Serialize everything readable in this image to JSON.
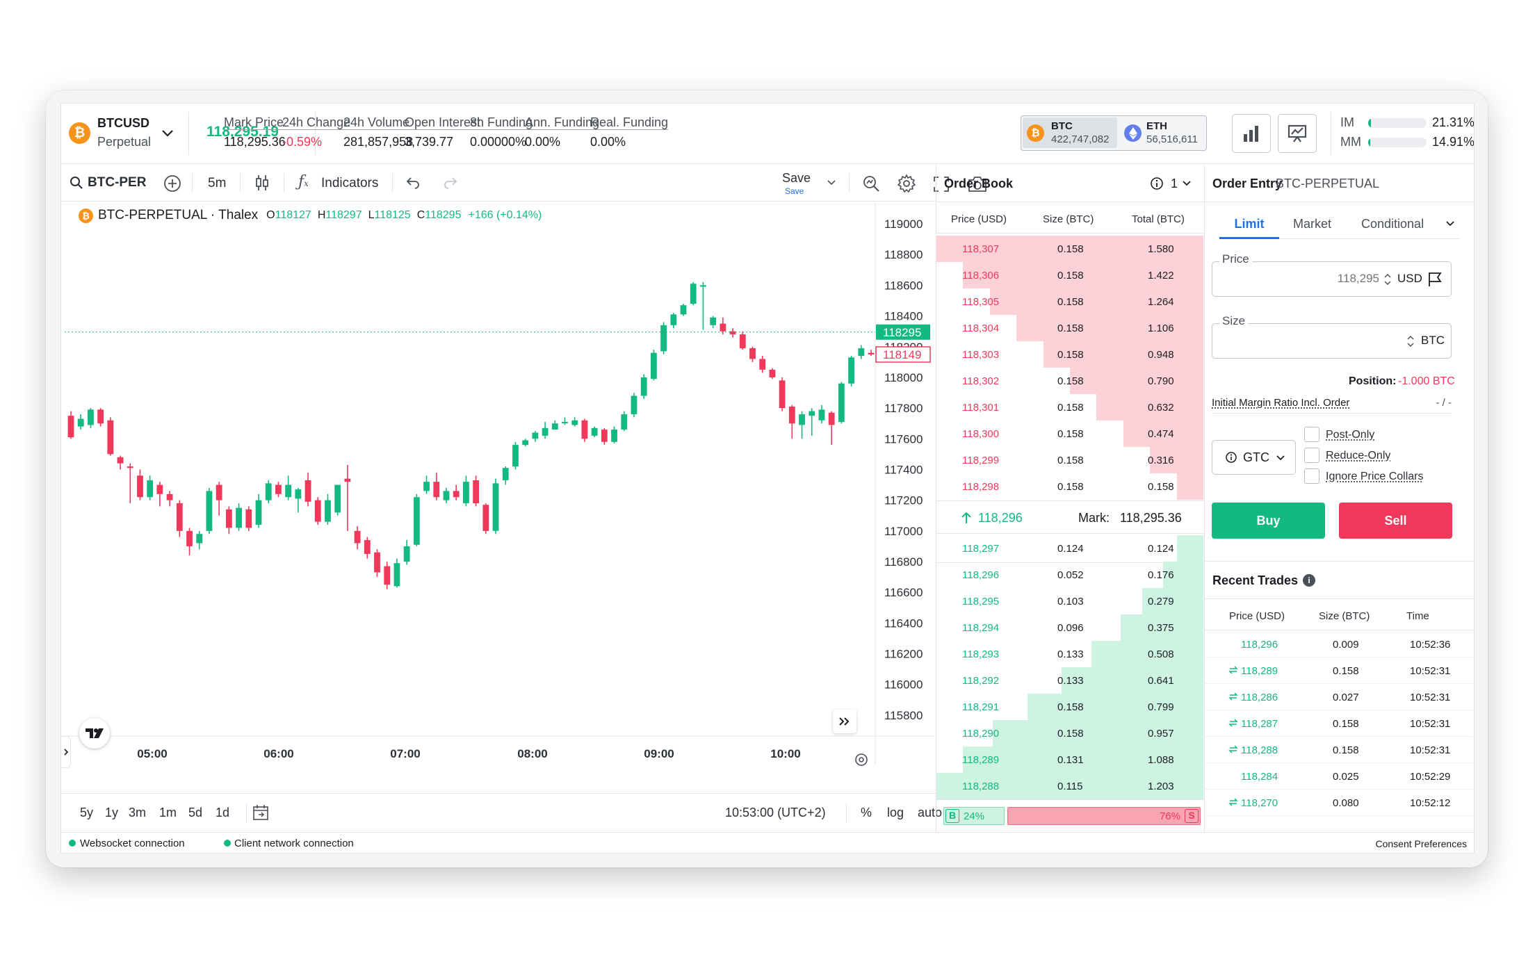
{
  "instrument": {
    "symbol": "BTCUSD",
    "type": "Perpetual",
    "price": "118,295.19"
  },
  "stats": [
    {
      "label": "Mark Price",
      "value": "118,295.36",
      "tone": "normal"
    },
    {
      "label": "24h Change",
      "value": "-0.59%",
      "tone": "red"
    },
    {
      "label": "24h Volume",
      "value": "281,857,958",
      "tone": "normal"
    },
    {
      "label": "Open Interest",
      "value": "3,739.77",
      "tone": "normal"
    },
    {
      "label": "8h Funding",
      "value": "0.00000%",
      "tone": "normal"
    },
    {
      "label": "Ann. Funding",
      "value": "0.00%",
      "tone": "normal"
    },
    {
      "label": "Real. Funding",
      "value": "0.00%",
      "tone": "normal"
    }
  ],
  "indices": [
    {
      "name": "BTC",
      "value": "422,747,082"
    },
    {
      "name": "ETH",
      "value": "56,516,611"
    }
  ],
  "margin": {
    "im_label": "IM",
    "im_value": "21.31%",
    "im_fill": 0.05,
    "mm_label": "MM",
    "mm_value": "14.91%",
    "mm_fill": 0.04
  },
  "toolbar": {
    "symbol": "BTC-PER",
    "interval": "5m",
    "indicators": "Indicators",
    "save": "Save",
    "save_sub": "Save"
  },
  "legend": {
    "title": "BTC-PERPETUAL · Thalex",
    "o_label": "O",
    "o": "118127",
    "h_label": "H",
    "h": "118297",
    "l_label": "L",
    "l": "118125",
    "c_label": "C",
    "c": "118295",
    "change": "+166 (+0.14%)"
  },
  "price_axis": [
    "119000",
    "118800",
    "118600",
    "118400",
    "118200",
    "118000",
    "117800",
    "117600",
    "117400",
    "117200",
    "117000",
    "116800",
    "116600",
    "116400",
    "116200",
    "116000",
    "115800"
  ],
  "current_price_tag": "118295",
  "last_price_tag": "118149",
  "time_axis": [
    "05:00",
    "06:00",
    "07:00",
    "08:00",
    "09:00",
    "10:00"
  ],
  "ranges": [
    "5y",
    "1y",
    "3m",
    "1m",
    "5d",
    "1d"
  ],
  "chart_footer": {
    "clock": "10:53:00 (UTC+2)",
    "pct": "%",
    "log": "log",
    "auto": "auto"
  },
  "chart_data": {
    "type": "candlestick",
    "x_unit": "5m bars",
    "ylim": [
      115700,
      119050
    ],
    "candles": [
      [
        117750,
        117610,
        117780,
        117600
      ],
      [
        117680,
        117730,
        117760,
        117660
      ],
      [
        117690,
        117790,
        117800,
        117670
      ],
      [
        117790,
        117700,
        117800,
        117680
      ],
      [
        117720,
        117500,
        117740,
        117490
      ],
      [
        117480,
        117440,
        117490,
        117400
      ],
      [
        117420,
        117410,
        117440,
        117180
      ],
      [
        117360,
        117220,
        117400,
        117200
      ],
      [
        117220,
        117330,
        117360,
        117200
      ],
      [
        117300,
        117240,
        117320,
        117160
      ],
      [
        117240,
        117200,
        117260,
        117160
      ],
      [
        117180,
        117000,
        117200,
        116960
      ],
      [
        117000,
        116900,
        117020,
        116840
      ],
      [
        116920,
        116980,
        117000,
        116880
      ],
      [
        117000,
        117260,
        117280,
        116980
      ],
      [
        117300,
        117200,
        117320,
        117100
      ],
      [
        117140,
        117020,
        117160,
        116980
      ],
      [
        117020,
        117150,
        117180,
        117000
      ],
      [
        117140,
        117020,
        117160,
        117000
      ],
      [
        117040,
        117200,
        117240,
        117020
      ],
      [
        117200,
        117310,
        117330,
        117180
      ],
      [
        117300,
        117240,
        117320,
        117220
      ],
      [
        117220,
        117300,
        117360,
        117200
      ],
      [
        117210,
        117270,
        117280,
        117120
      ],
      [
        117330,
        117190,
        117380,
        117160
      ],
      [
        117200,
        117060,
        117220,
        117040
      ],
      [
        117060,
        117200,
        117240,
        117040
      ],
      [
        117120,
        117300,
        117300,
        117100
      ],
      [
        117340,
        117320,
        117430,
        117000
      ],
      [
        117000,
        116920,
        117030,
        116880
      ],
      [
        116940,
        116850,
        116960,
        116820
      ],
      [
        116860,
        116730,
        116880,
        116700
      ],
      [
        116770,
        116650,
        116800,
        116620
      ],
      [
        116640,
        116790,
        116820,
        116630
      ],
      [
        116800,
        116900,
        116940,
        116780
      ],
      [
        116910,
        117220,
        117240,
        116900
      ],
      [
        117260,
        117320,
        117360,
        117240
      ],
      [
        117320,
        117220,
        117380,
        117200
      ],
      [
        117200,
        117260,
        117280,
        117180
      ],
      [
        117260,
        117220,
        117300,
        117200
      ],
      [
        117180,
        117320,
        117360,
        117160
      ],
      [
        117330,
        117180,
        117360,
        117160
      ],
      [
        117170,
        117000,
        117180,
        116980
      ],
      [
        117000,
        117310,
        117340,
        116980
      ],
      [
        117330,
        117410,
        117420,
        117300
      ],
      [
        117420,
        117560,
        117580,
        117400
      ],
      [
        117560,
        117590,
        117600,
        117550
      ],
      [
        117600,
        117640,
        117650,
        117580
      ],
      [
        117620,
        117670,
        117710,
        117600
      ],
      [
        117660,
        117700,
        117720,
        117660
      ],
      [
        117710,
        117710,
        117740,
        117690
      ],
      [
        117690,
        117720,
        117740,
        117680
      ],
      [
        117720,
        117600,
        117730,
        117580
      ],
      [
        117620,
        117670,
        117680,
        117610
      ],
      [
        117660,
        117580,
        117670,
        117560
      ],
      [
        117580,
        117660,
        117680,
        117570
      ],
      [
        117660,
        117760,
        117780,
        117650
      ],
      [
        117760,
        117880,
        117900,
        117740
      ],
      [
        117880,
        118000,
        118020,
        117860
      ],
      [
        117990,
        118160,
        118180,
        117980
      ],
      [
        118170,
        118340,
        118360,
        118150
      ],
      [
        118340,
        118410,
        118420,
        118320
      ],
      [
        118410,
        118470,
        118480,
        118400
      ],
      [
        118480,
        118610,
        118620,
        118470
      ],
      [
        118600,
        118600,
        118620,
        118310
      ],
      [
        118340,
        118390,
        118400,
        118320
      ],
      [
        118350,
        118300,
        118390,
        118280
      ],
      [
        118300,
        118280,
        118320,
        118260
      ],
      [
        118280,
        118190,
        118300,
        118180
      ],
      [
        118190,
        118120,
        118200,
        118100
      ],
      [
        118120,
        118050,
        118140,
        118030
      ],
      [
        118050,
        118000,
        118060,
        117990
      ],
      [
        117980,
        117800,
        118000,
        117780
      ],
      [
        117810,
        117700,
        117820,
        117600
      ],
      [
        117690,
        117760,
        117780,
        117600
      ],
      [
        117750,
        117780,
        117800,
        117620
      ],
      [
        117720,
        117790,
        117820,
        117700
      ],
      [
        117770,
        117690,
        117780,
        117560
      ],
      [
        117710,
        117960,
        117970,
        117700
      ],
      [
        117960,
        118130,
        118140,
        117940
      ],
      [
        118140,
        118190,
        118210,
        118120
      ],
      [
        118160,
        118149,
        118180,
        118140
      ]
    ]
  },
  "orderbook": {
    "title": "Order Book",
    "agg": "1",
    "headers": [
      "Price (USD)",
      "Size (BTC)",
      "Total (BTC)"
    ],
    "asks": [
      [
        "118,307",
        "0.158",
        "1.580",
        1.0
      ],
      [
        "118,306",
        "0.158",
        "1.422",
        0.9
      ],
      [
        "118,305",
        "0.158",
        "1.264",
        0.8
      ],
      [
        "118,304",
        "0.158",
        "1.106",
        0.7
      ],
      [
        "118,303",
        "0.158",
        "0.948",
        0.6
      ],
      [
        "118,302",
        "0.158",
        "0.790",
        0.5
      ],
      [
        "118,301",
        "0.158",
        "0.632",
        0.4
      ],
      [
        "118,300",
        "0.158",
        "0.474",
        0.3
      ],
      [
        "118,299",
        "0.158",
        "0.316",
        0.2
      ],
      [
        "118,298",
        "0.158",
        "0.158",
        0.1
      ]
    ],
    "last": "118,296",
    "mark_label": "Mark:",
    "mark": "118,295.36",
    "bids": [
      [
        "118,297",
        "0.124",
        "0.124",
        0.1
      ],
      [
        "118,296",
        "0.052",
        "0.176",
        0.15
      ],
      [
        "118,295",
        "0.103",
        "0.279",
        0.23
      ],
      [
        "118,294",
        "0.096",
        "0.375",
        0.31
      ],
      [
        "118,293",
        "0.133",
        "0.508",
        0.42
      ],
      [
        "118,292",
        "0.133",
        "0.641",
        0.53
      ],
      [
        "118,291",
        "0.158",
        "0.799",
        0.66
      ],
      [
        "118,290",
        "0.158",
        "0.957",
        0.79
      ],
      [
        "118,289",
        "0.131",
        "1.088",
        0.9
      ],
      [
        "118,288",
        "0.115",
        "1.203",
        1.0
      ]
    ],
    "buy_label": "B",
    "buy_pct": "24%",
    "buy_share": 0.24,
    "sell_label": "S",
    "sell_pct": "76%"
  },
  "order_entry": {
    "title": "Order Entry",
    "instrument": "BTC-PERPETUAL",
    "tabs": [
      "Limit",
      "Market",
      "Conditional"
    ],
    "price_label": "Price",
    "price_placeholder": "118,295",
    "price_unit": "USD",
    "size_label": "Size",
    "size_unit": "BTC",
    "position_label": "Position:",
    "position_value": "-1.000 BTC",
    "imr_label": "Initial Margin Ratio Incl. Order",
    "imr_value": "- / -",
    "tif": "GTC",
    "options": [
      "Post-Only",
      "Reduce-Only",
      "Ignore Price Collars"
    ],
    "buy": "Buy",
    "sell": "Sell"
  },
  "recent_trades": {
    "title": "Recent Trades",
    "headers": [
      "Price (USD)",
      "Size (BTC)",
      "Time"
    ],
    "rows": [
      [
        "118,296",
        "0.009",
        "10:52:36",
        false
      ],
      [
        "118,289",
        "0.158",
        "10:52:31",
        true
      ],
      [
        "118,286",
        "0.027",
        "10:52:31",
        true
      ],
      [
        "118,287",
        "0.158",
        "10:52:31",
        true
      ],
      [
        "118,288",
        "0.158",
        "10:52:31",
        true
      ],
      [
        "118,284",
        "0.025",
        "10:52:29",
        false
      ],
      [
        "118,270",
        "0.080",
        "10:52:12",
        true
      ]
    ]
  },
  "status": {
    "ws": "Websocket connection",
    "net": "Client network connection",
    "consent": "Consent Preferences"
  },
  "colors": {
    "up": "#12b980",
    "down": "#f0385a",
    "bid_bg": "#cdf3e2",
    "ask_bg": "#fcd1d7",
    "accent": "#1b72e8"
  }
}
